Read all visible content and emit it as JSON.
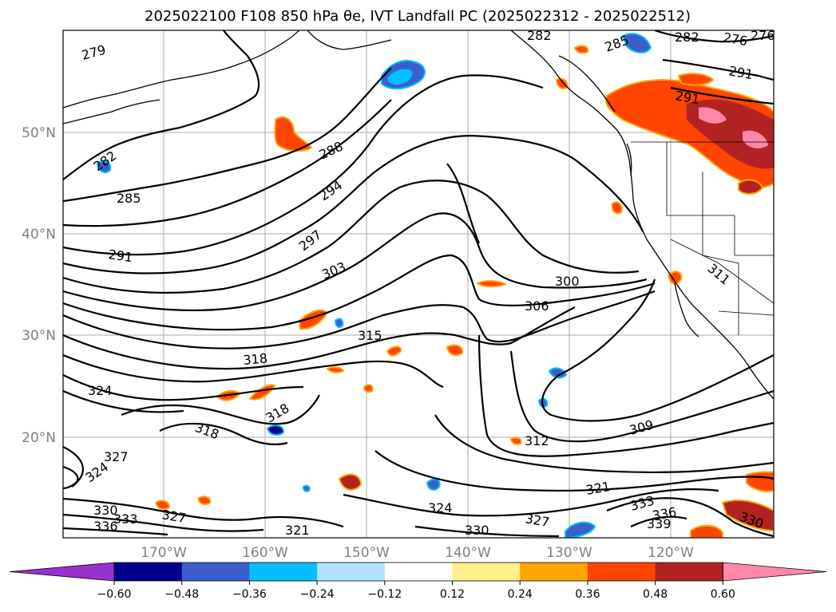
{
  "title_text": "2025022100 F108 850 hPa θe, IVT Landfall PC (2025022312 - 2025022512)",
  "chart_data": {
    "type": "map-contour",
    "title": "2025022100 F108 850 hPa θe, IVT Landfall PC (2025022312 - 2025022512)",
    "lat_ticks": [
      "50°N",
      "40°N",
      "30°N",
      "20°N"
    ],
    "lon_ticks": [
      "170°W",
      "160°W",
      "150°W",
      "140°W",
      "130°W",
      "120°W"
    ],
    "colorbar": {
      "ticks": [
        "−0.60",
        "−0.48",
        "−0.36",
        "−0.24",
        "−0.12",
        "0.12",
        "0.24",
        "0.36",
        "0.48",
        "0.60"
      ],
      "colors": [
        "#9932cc",
        "#00008b",
        "#3a5fcd",
        "#00bfff",
        "#b0e2ff",
        "#ffffff",
        "#fff08c",
        "#ffa500",
        "#ff4500",
        "#b22222",
        "#ff88aa"
      ]
    },
    "contour_labels": [
      "279",
      "282",
      "285",
      "288",
      "291",
      "294",
      "297",
      "300",
      "303",
      "306",
      "309",
      "312",
      "315",
      "318",
      "321",
      "324",
      "327",
      "330",
      "333",
      "336",
      "339",
      "276",
      "291",
      "311",
      "318"
    ]
  }
}
